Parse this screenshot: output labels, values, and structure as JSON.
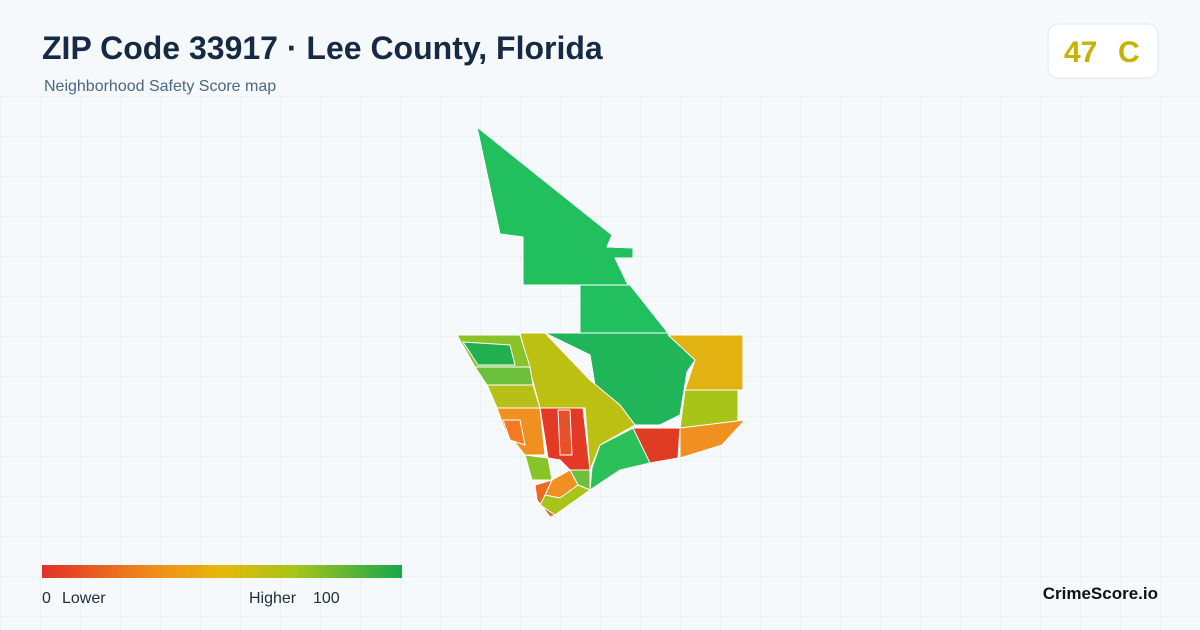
{
  "header": {
    "title": "ZIP Code 33917 · Lee County, Florida",
    "subtitle": "Neighborhood Safety Score map"
  },
  "score": {
    "value": "47",
    "grade": "C"
  },
  "legend": {
    "min": "0",
    "min_label": "Lower",
    "max_label": "Higher",
    "max": "100"
  },
  "brand": "CrimeScore.io"
}
